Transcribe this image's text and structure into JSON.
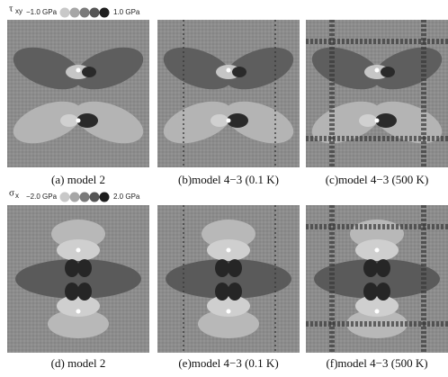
{
  "figure": {
    "rows": [
      {
        "legend": {
          "symbol": "τ",
          "subscript": "xy",
          "min": "−1.0 GPa",
          "max": "1.0 GPa"
        },
        "captions": [
          "(a) model 2",
          "(b)model 4−3 (0.1 K)",
          "(c)model 4−3 (500 K)"
        ]
      },
      {
        "legend": {
          "symbol": "σ",
          "subscript": "x",
          "min": "−2.0 GPa",
          "max": "2.0 GPa"
        },
        "captions": [
          "(d) model 2",
          "(e)model 4−3 (0.1 K)",
          "(f)model 4−3 (500 K)"
        ]
      }
    ]
  }
}
